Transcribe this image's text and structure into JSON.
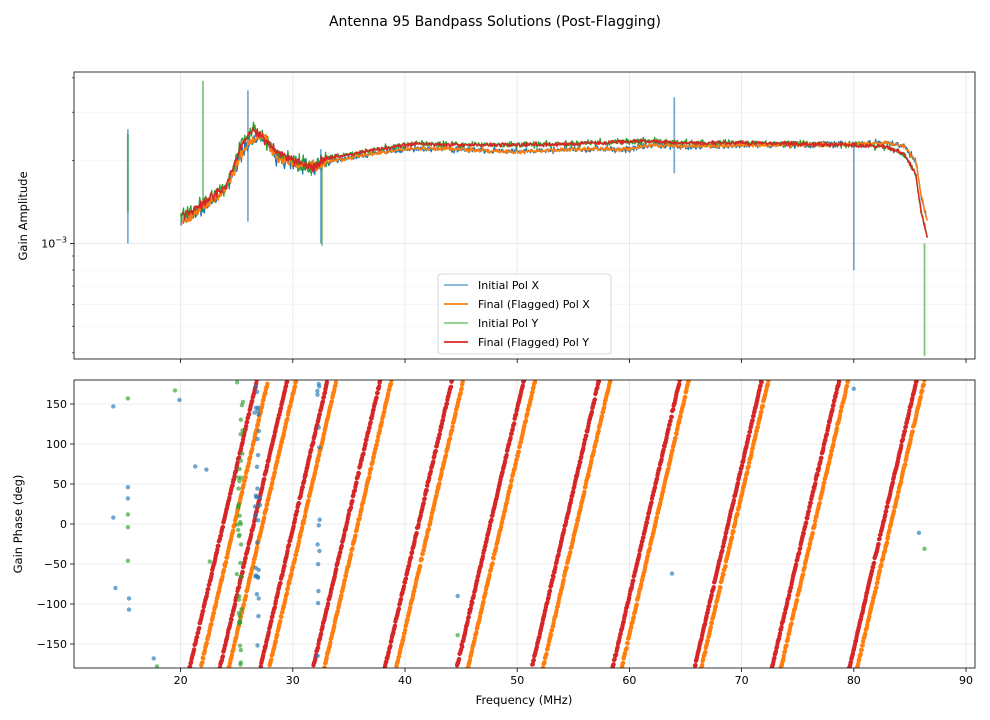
{
  "chart_data": {
    "title": "Antenna 95 Bandpass Solutions (Post-Flagging)",
    "legend": {
      "placement": "lower-center",
      "entries": [
        {
          "label": "Initial Pol X",
          "color": "#7fb2d7"
        },
        {
          "label": "Final (Flagged) Pol X",
          "color": "#ff7f0e"
        },
        {
          "label": "Initial Pol Y",
          "color": "#86cd86"
        },
        {
          "label": "Final (Flagged) Pol Y",
          "color": "#d62728"
        }
      ]
    },
    "colors": {
      "initial_x": "#1f77b4",
      "final_x": "#ff7f0e",
      "initial_y": "#2ca02c",
      "final_y": "#d62728"
    },
    "panels": [
      {
        "type": "line",
        "ylabel": "Gain Amplitude",
        "yscale": "log",
        "ylim": [
          0.00038,
          0.0042
        ],
        "yticks": [
          {
            "value": 0.001,
            "base": "10",
            "exponent": "−3"
          }
        ],
        "grid": true,
        "series_summary": {
          "frequency_MHz": [
            18.0,
            20.0,
            22.0,
            24.0,
            25.5,
            26.5,
            27.5,
            28.5,
            30.0,
            32.0,
            33.0,
            35.0,
            38.0,
            41.0,
            45.0,
            50.0,
            55.0,
            60.0,
            62.0,
            65.0,
            70.0,
            75.0,
            80.0,
            83.0,
            84.5,
            85.5,
            86.0,
            86.6
          ],
          "final_x_amplitude": [
            null,
            0.00118,
            0.00135,
            0.00155,
            0.00215,
            0.00238,
            0.00245,
            0.00205,
            0.00195,
            0.0019,
            0.00198,
            0.00205,
            0.00215,
            0.00222,
            0.0022,
            0.00215,
            0.0022,
            0.0022,
            0.00228,
            0.00225,
            0.00228,
            0.00228,
            0.0023,
            0.00232,
            0.00225,
            0.002,
            0.0015,
            0.00118
          ],
          "final_y_amplitude": [
            null,
            0.00125,
            0.0014,
            0.0016,
            0.0023,
            0.0026,
            0.0024,
            0.00215,
            0.002,
            0.0019,
            0.00205,
            0.0021,
            0.00222,
            0.0023,
            0.00228,
            0.00228,
            0.0023,
            0.00235,
            0.00235,
            0.00232,
            0.00232,
            0.0023,
            0.00228,
            0.00225,
            0.0021,
            0.0018,
            0.0013,
            0.00103
          ],
          "initial_spikes": [
            {
              "frequency": 15.3,
              "polarization": "X",
              "amplitude_min": 0.001,
              "amplitude_max": 0.0026
            },
            {
              "frequency": 15.3,
              "polarization": "Y",
              "amplitude_min": 0.0013,
              "amplitude_max": 0.0025
            },
            {
              "frequency": 22.0,
              "polarization": "Y",
              "amplitude_min": 0.0013,
              "amplitude_max": 0.0039
            },
            {
              "frequency": 26.0,
              "polarization": "X",
              "amplitude_min": 0.0012,
              "amplitude_max": 0.0036
            },
            {
              "frequency": 32.5,
              "polarization": "X",
              "amplitude_min": 0.001,
              "amplitude_max": 0.0022
            },
            {
              "frequency": 32.6,
              "polarization": "Y",
              "amplitude_min": 0.00098,
              "amplitude_max": 0.002
            },
            {
              "frequency": 64.0,
              "polarization": "X",
              "amplitude_min": 0.0018,
              "amplitude_max": 0.0034
            },
            {
              "frequency": 80.0,
              "polarization": "X",
              "amplitude_min": 0.0008,
              "amplitude_max": 0.0023
            },
            {
              "frequency": 86.3,
              "polarization": "Y",
              "amplitude_min": 0.00039,
              "amplitude_max": 0.001
            }
          ]
        }
      },
      {
        "type": "scatter",
        "ylabel": "Gain Phase (deg)",
        "xlabel": "Frequency (MHz)",
        "ylim": [
          -180,
          180
        ],
        "yticks": [
          "−150",
          "−100",
          "−50",
          "0",
          "50",
          "100",
          "150"
        ],
        "grid": true,
        "phase_wrap_lines": {
          "final_x_start_frequency": [
            21.8,
            24.3,
            27.9,
            32.8,
            39.2,
            45.6,
            52.3,
            59.3,
            66.4,
            73.5,
            80.3
          ],
          "final_y_start_frequency": [
            20.8,
            23.5,
            27.1,
            31.8,
            38.2,
            44.6,
            51.3,
            58.5,
            65.8,
            72.7,
            79.6
          ],
          "slope_deg_per_MHz": 60.0
        },
        "scattered_initial_points": [
          {
            "frequency": 14.0,
            "phase": 147,
            "series": "initial_x"
          },
          {
            "frequency": 14.0,
            "phase": 8,
            "series": "initial_x"
          },
          {
            "frequency": 14.2,
            "phase": -80,
            "series": "initial_x"
          },
          {
            "frequency": 15.3,
            "phase": 157,
            "series": "initial_y"
          },
          {
            "frequency": 15.3,
            "phase": 46,
            "series": "initial_x"
          },
          {
            "frequency": 15.3,
            "phase": 32,
            "series": "initial_x"
          },
          {
            "frequency": 15.3,
            "phase": 12,
            "series": "initial_y"
          },
          {
            "frequency": 15.3,
            "phase": -4,
            "series": "initial_y"
          },
          {
            "frequency": 15.3,
            "phase": -46,
            "series": "initial_y"
          },
          {
            "frequency": 15.4,
            "phase": -93,
            "series": "initial_x"
          },
          {
            "frequency": 15.4,
            "phase": -107,
            "series": "initial_x"
          },
          {
            "frequency": 17.6,
            "phase": -168,
            "series": "initial_x"
          },
          {
            "frequency": 17.9,
            "phase": -178,
            "series": "initial_y"
          },
          {
            "frequency": 19.5,
            "phase": 167,
            "series": "initial_y"
          },
          {
            "frequency": 19.9,
            "phase": 155,
            "series": "initial_x"
          },
          {
            "frequency": 21.3,
            "phase": 72,
            "series": "initial_x"
          },
          {
            "frequency": 22.3,
            "phase": 68,
            "series": "initial_x"
          },
          {
            "frequency": 22.6,
            "phase": -47,
            "series": "initial_y"
          },
          {
            "frequency": 44.7,
            "phase": -90,
            "series": "initial_x"
          },
          {
            "frequency": 44.7,
            "phase": -139,
            "series": "initial_y"
          },
          {
            "frequency": 63.8,
            "phase": -62,
            "series": "initial_x"
          },
          {
            "frequency": 80.0,
            "phase": 169,
            "series": "initial_x"
          },
          {
            "frequency": 85.8,
            "phase": -11,
            "series": "initial_x"
          },
          {
            "frequency": 86.3,
            "phase": -31,
            "series": "initial_y"
          }
        ]
      }
    ],
    "xaxis": {
      "xlim": [
        10.5,
        90.8
      ],
      "ticks": [
        "20",
        "30",
        "40",
        "50",
        "60",
        "70",
        "80",
        "90"
      ]
    }
  }
}
